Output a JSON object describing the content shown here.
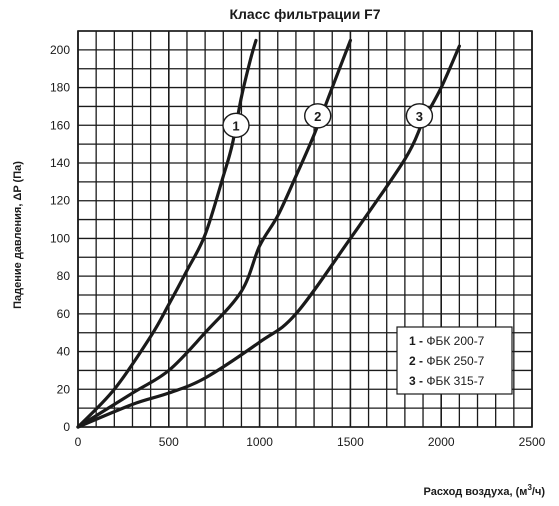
{
  "chart_data": {
    "type": "line",
    "title": "Класс фильтрации F7",
    "xlabel_prefix": "Расход воздуха, (м",
    "xlabel_sup": "3",
    "xlabel_suffix": "/ч)",
    "ylabel": "Падение давления, ΔP (Па)",
    "xlim": [
      0,
      2500
    ],
    "ylim": [
      0,
      210
    ],
    "x_ticks": [
      0,
      500,
      1000,
      1500,
      2000,
      2500
    ],
    "y_ticks": [
      0,
      20,
      40,
      60,
      80,
      100,
      120,
      140,
      160,
      180,
      200
    ],
    "x_minor_step": 100,
    "y_minor_step": 10,
    "grid": true,
    "legend_position": "bottom-right",
    "series": [
      {
        "name": "ФБК 200-7",
        "number": "1",
        "x": [
          0,
          200,
          400,
          500,
          600,
          700,
          800,
          850,
          900,
          950,
          980
        ],
        "y": [
          0,
          20,
          48,
          65,
          83,
          102,
          133,
          150,
          175,
          195,
          205
        ]
      },
      {
        "name": "ФБК 250-7",
        "number": "2",
        "x": [
          0,
          300,
          500,
          700,
          900,
          1000,
          1100,
          1200,
          1300,
          1400,
          1500
        ],
        "y": [
          0,
          18,
          30,
          50,
          72,
          96,
          112,
          133,
          155,
          180,
          205
        ]
      },
      {
        "name": "ФБК 315-7",
        "number": "3",
        "x": [
          0,
          300,
          500,
          700,
          1000,
          1200,
          1500,
          1800,
          1900,
          2000,
          2100
        ],
        "y": [
          0,
          12,
          18,
          26,
          45,
          60,
          100,
          142,
          162,
          180,
          202
        ]
      }
    ],
    "label_points": [
      {
        "x": 870,
        "y": 160
      },
      {
        "x": 1320,
        "y": 165
      },
      {
        "x": 1880,
        "y": 165
      }
    ],
    "legend_sep": "-"
  }
}
